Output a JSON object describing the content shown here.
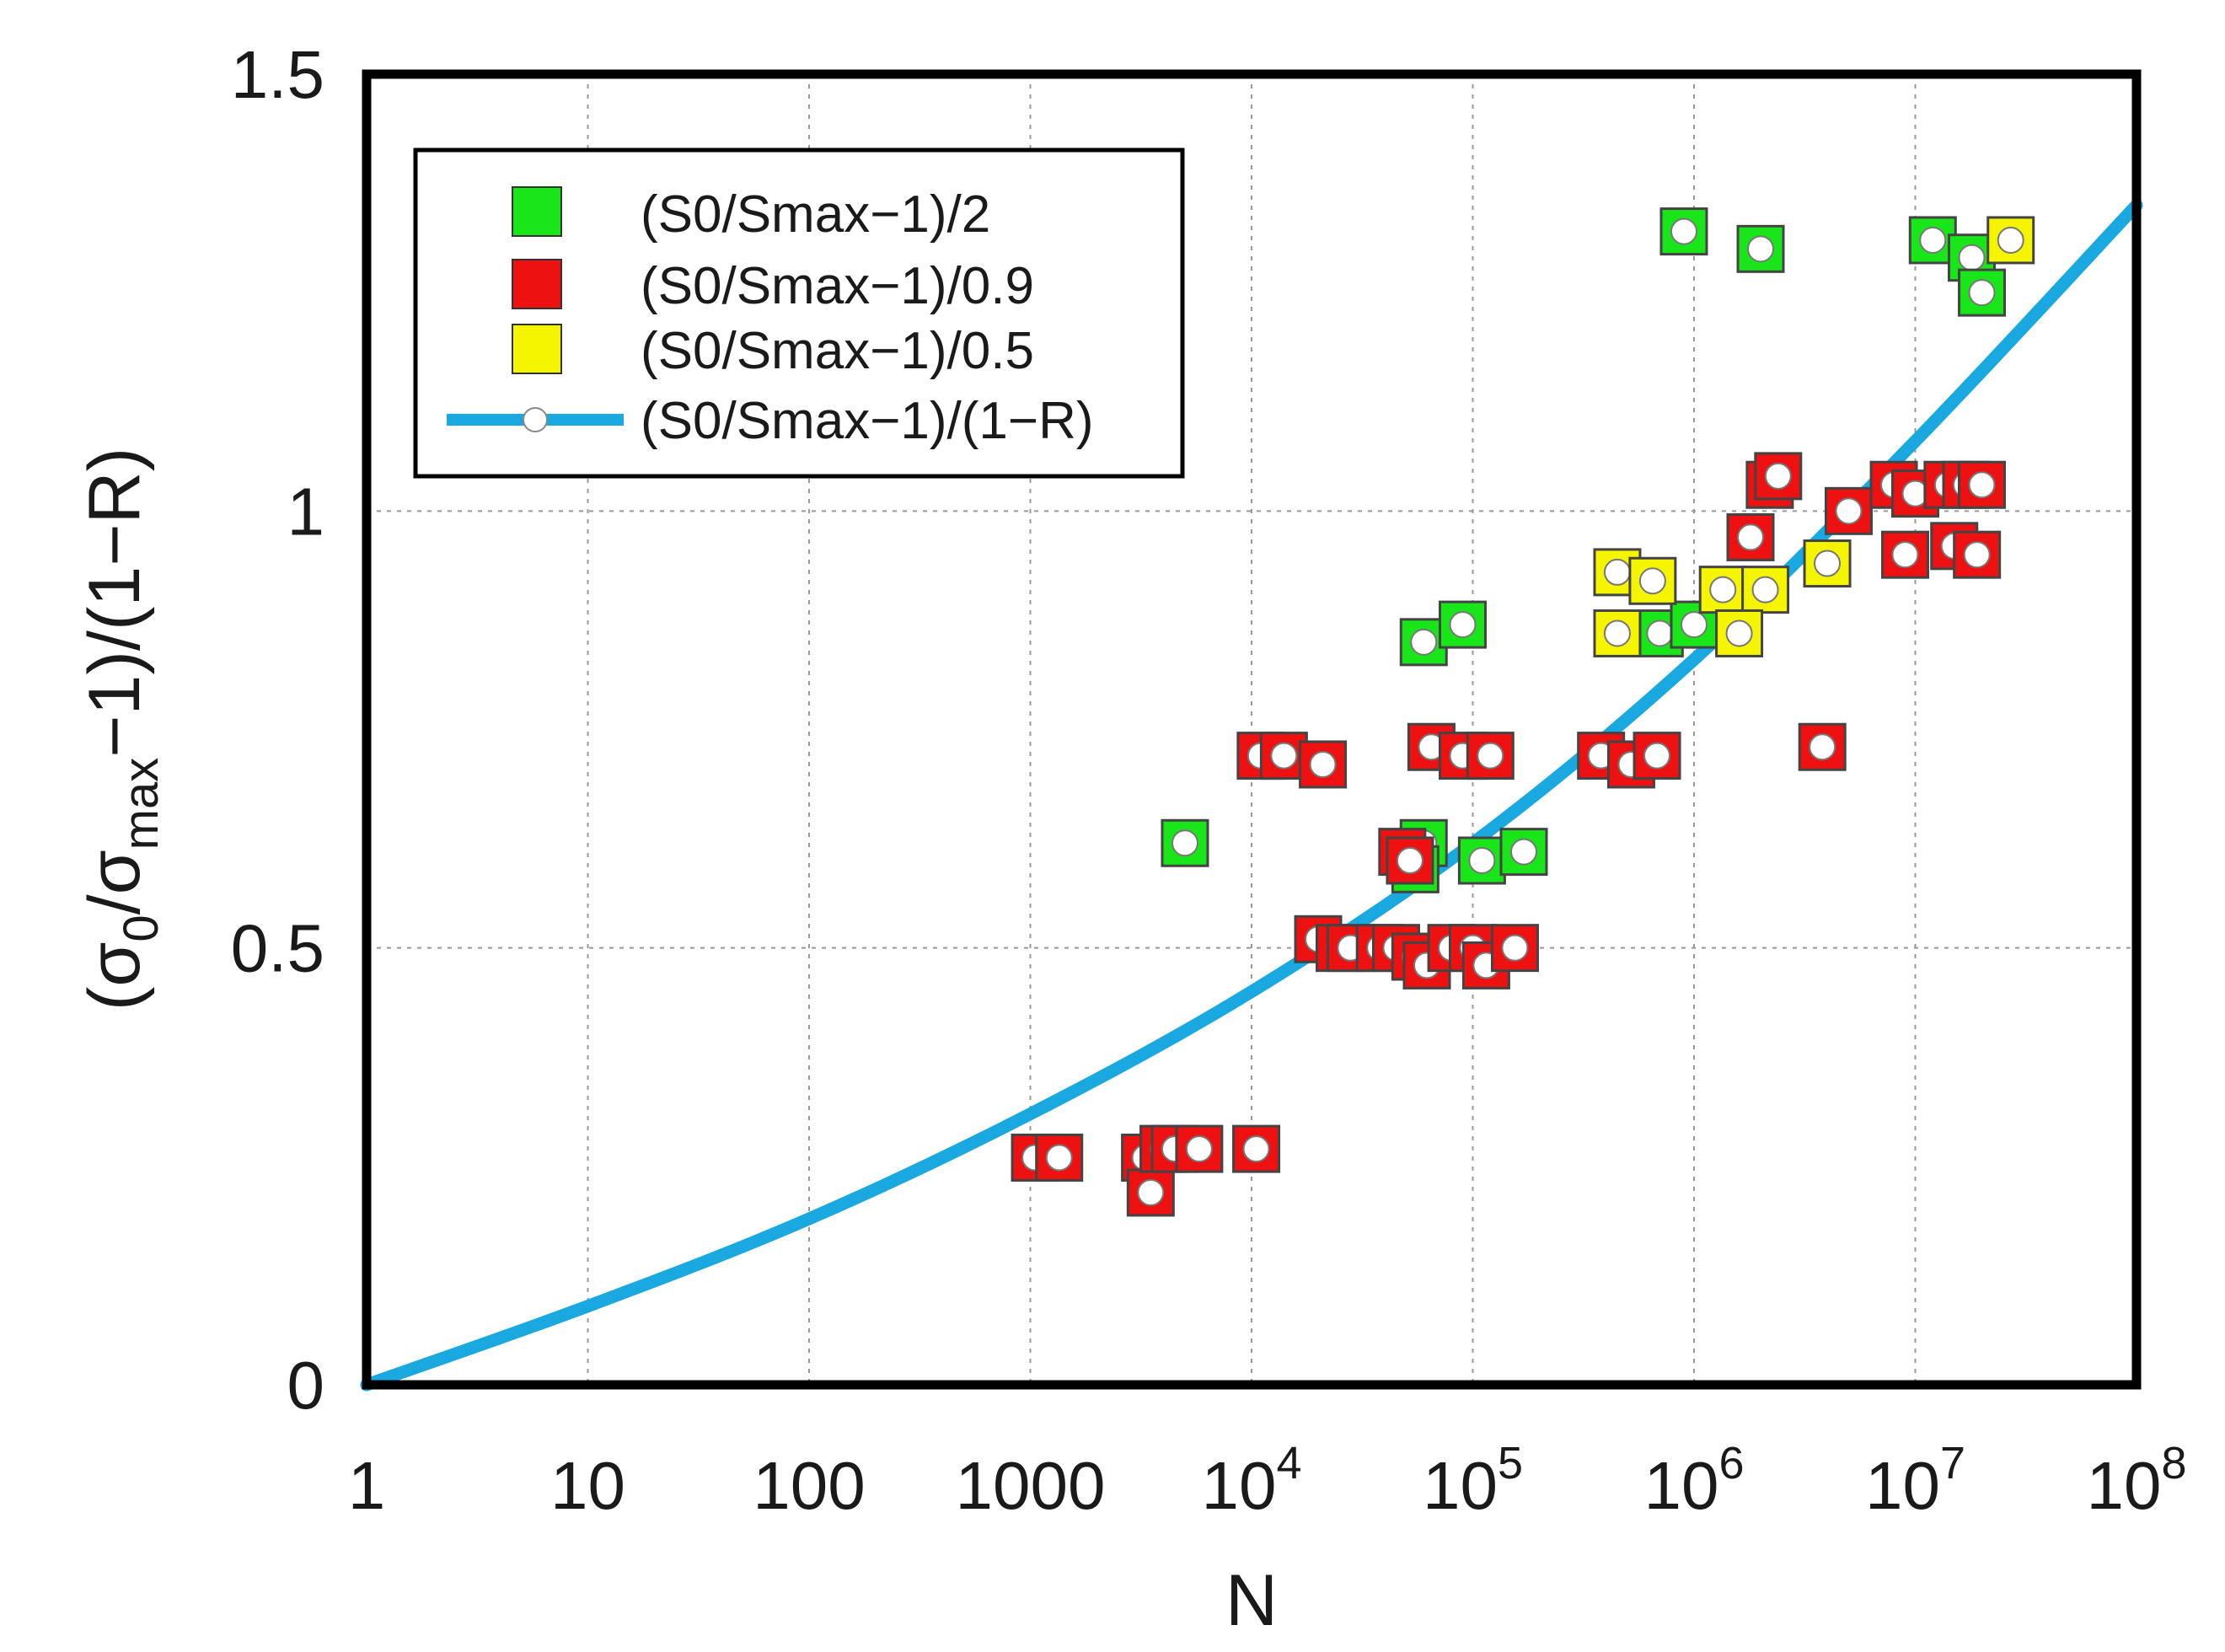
{
  "chart_data": {
    "type": "scatter",
    "xlabel": "N",
    "ylabel": {
      "parts": [
        "(σ",
        "0",
        "/σ",
        "max",
        "−1)/(1−R)"
      ]
    },
    "xscale": "log",
    "xlim": [
      1,
      100000000
    ],
    "ylim": [
      0,
      1.5
    ],
    "grid": true,
    "legend_position": "top-left",
    "x_ticks": [
      {
        "value": 1,
        "base": "1",
        "exp": ""
      },
      {
        "value": 10,
        "base": "10",
        "exp": ""
      },
      {
        "value": 100,
        "base": "100",
        "exp": ""
      },
      {
        "value": 1000,
        "base": "1000",
        "exp": ""
      },
      {
        "value": 10000,
        "base": "10",
        "exp": "4"
      },
      {
        "value": 100000,
        "base": "10",
        "exp": "5"
      },
      {
        "value": 1000000,
        "base": "10",
        "exp": "6"
      },
      {
        "value": 10000000,
        "base": "10",
        "exp": "7"
      },
      {
        "value": 100000000,
        "base": "10",
        "exp": "8"
      }
    ],
    "y_ticks": [
      {
        "value": 0,
        "label": "0"
      },
      {
        "value": 0.5,
        "label": "0.5"
      },
      {
        "value": 1,
        "label": "1"
      },
      {
        "value": 1.5,
        "label": "1.5"
      }
    ],
    "colors": {
      "green": "#19e619",
      "red": "#ee1111",
      "yellow": "#f5f500",
      "line": "#1aa8e0"
    },
    "legend": [
      {
        "label": "(S0/Smax−1)/2",
        "kind": "square",
        "color": "#19e619"
      },
      {
        "label": "(S0/Smax−1)/0.9",
        "kind": "square",
        "color": "#ee1111"
      },
      {
        "label": "(S0/Smax−1)/0.5",
        "kind": "square",
        "color": "#f5f500"
      },
      {
        "label": "(S0/Smax−1)/(1−R)",
        "kind": "line-circle",
        "color": "#1aa8e0"
      }
    ],
    "series": [
      {
        "name": "(S0/Smax−1)/2",
        "color": "#19e619",
        "points": [
          {
            "x": 900000,
            "y": 1.32
          },
          {
            "x": 2000000,
            "y": 1.3
          },
          {
            "x": 12000000,
            "y": 1.31
          },
          {
            "x": 18000000,
            "y": 1.29
          },
          {
            "x": 20000000,
            "y": 1.25
          },
          {
            "x": 60000,
            "y": 0.85
          },
          {
            "x": 90000,
            "y": 0.87
          },
          {
            "x": 5000,
            "y": 0.62
          },
          {
            "x": 60000,
            "y": 0.62
          },
          {
            "x": 55000,
            "y": 0.59
          },
          {
            "x": 110000,
            "y": 0.6
          },
          {
            "x": 170000,
            "y": 0.61
          },
          {
            "x": 700000,
            "y": 0.86
          },
          {
            "x": 1000000,
            "y": 0.87
          }
        ]
      },
      {
        "name": "(S0/Smax−1)/0.9",
        "color": "#ee1111",
        "points": [
          {
            "x": 2200000,
            "y": 1.03
          },
          {
            "x": 2400000,
            "y": 1.04
          },
          {
            "x": 5000000,
            "y": 1.0
          },
          {
            "x": 8000000,
            "y": 1.03
          },
          {
            "x": 10000000,
            "y": 1.02
          },
          {
            "x": 14000000,
            "y": 1.03
          },
          {
            "x": 17000000,
            "y": 1.03
          },
          {
            "x": 20000000,
            "y": 1.03
          },
          {
            "x": 1800000,
            "y": 0.97
          },
          {
            "x": 9000000,
            "y": 0.95
          },
          {
            "x": 15000000,
            "y": 0.96
          },
          {
            "x": 19000000,
            "y": 0.95
          },
          {
            "x": 3800000,
            "y": 0.73
          },
          {
            "x": 11000,
            "y": 0.72
          },
          {
            "x": 14000,
            "y": 0.72
          },
          {
            "x": 21000,
            "y": 0.71
          },
          {
            "x": 65000,
            "y": 0.73
          },
          {
            "x": 90000,
            "y": 0.72
          },
          {
            "x": 120000,
            "y": 0.72
          },
          {
            "x": 380000,
            "y": 0.72
          },
          {
            "x": 520000,
            "y": 0.71
          },
          {
            "x": 680000,
            "y": 0.72
          },
          {
            "x": 48000,
            "y": 0.61
          },
          {
            "x": 52000,
            "y": 0.6
          },
          {
            "x": 20000,
            "y": 0.51
          },
          {
            "x": 25000,
            "y": 0.5
          },
          {
            "x": 28000,
            "y": 0.5
          },
          {
            "x": 38000,
            "y": 0.5
          },
          {
            "x": 45000,
            "y": 0.5
          },
          {
            "x": 55000,
            "y": 0.49
          },
          {
            "x": 62000,
            "y": 0.48
          },
          {
            "x": 80000,
            "y": 0.5
          },
          {
            "x": 100000,
            "y": 0.5
          },
          {
            "x": 115000,
            "y": 0.48
          },
          {
            "x": 155000,
            "y": 0.5
          },
          {
            "x": 1050,
            "y": 0.26
          },
          {
            "x": 1350,
            "y": 0.26
          },
          {
            "x": 3300,
            "y": 0.26
          },
          {
            "x": 3500,
            "y": 0.22
          },
          {
            "x": 4000,
            "y": 0.27
          },
          {
            "x": 4500,
            "y": 0.27
          },
          {
            "x": 5800,
            "y": 0.27
          },
          {
            "x": 10500,
            "y": 0.27
          }
        ]
      },
      {
        "name": "(S0/Smax−1)/0.5",
        "color": "#f5f500",
        "points": [
          {
            "x": 27000000,
            "y": 1.31
          },
          {
            "x": 450000,
            "y": 0.93
          },
          {
            "x": 650000,
            "y": 0.92
          },
          {
            "x": 1350000,
            "y": 0.91
          },
          {
            "x": 2100000,
            "y": 0.91
          },
          {
            "x": 450000,
            "y": 0.86
          },
          {
            "x": 1600000,
            "y": 0.86
          },
          {
            "x": 4000000,
            "y": 0.94
          }
        ]
      }
    ],
    "curve": {
      "name": "(S0/Smax−1)/(1−R)",
      "x": [
        1,
        10,
        100,
        1000,
        10000,
        100000,
        1000000,
        10000000,
        100000000
      ],
      "y": [
        0,
        0.09,
        0.19,
        0.31,
        0.45,
        0.62,
        0.83,
        1.08,
        1.35
      ]
    }
  }
}
